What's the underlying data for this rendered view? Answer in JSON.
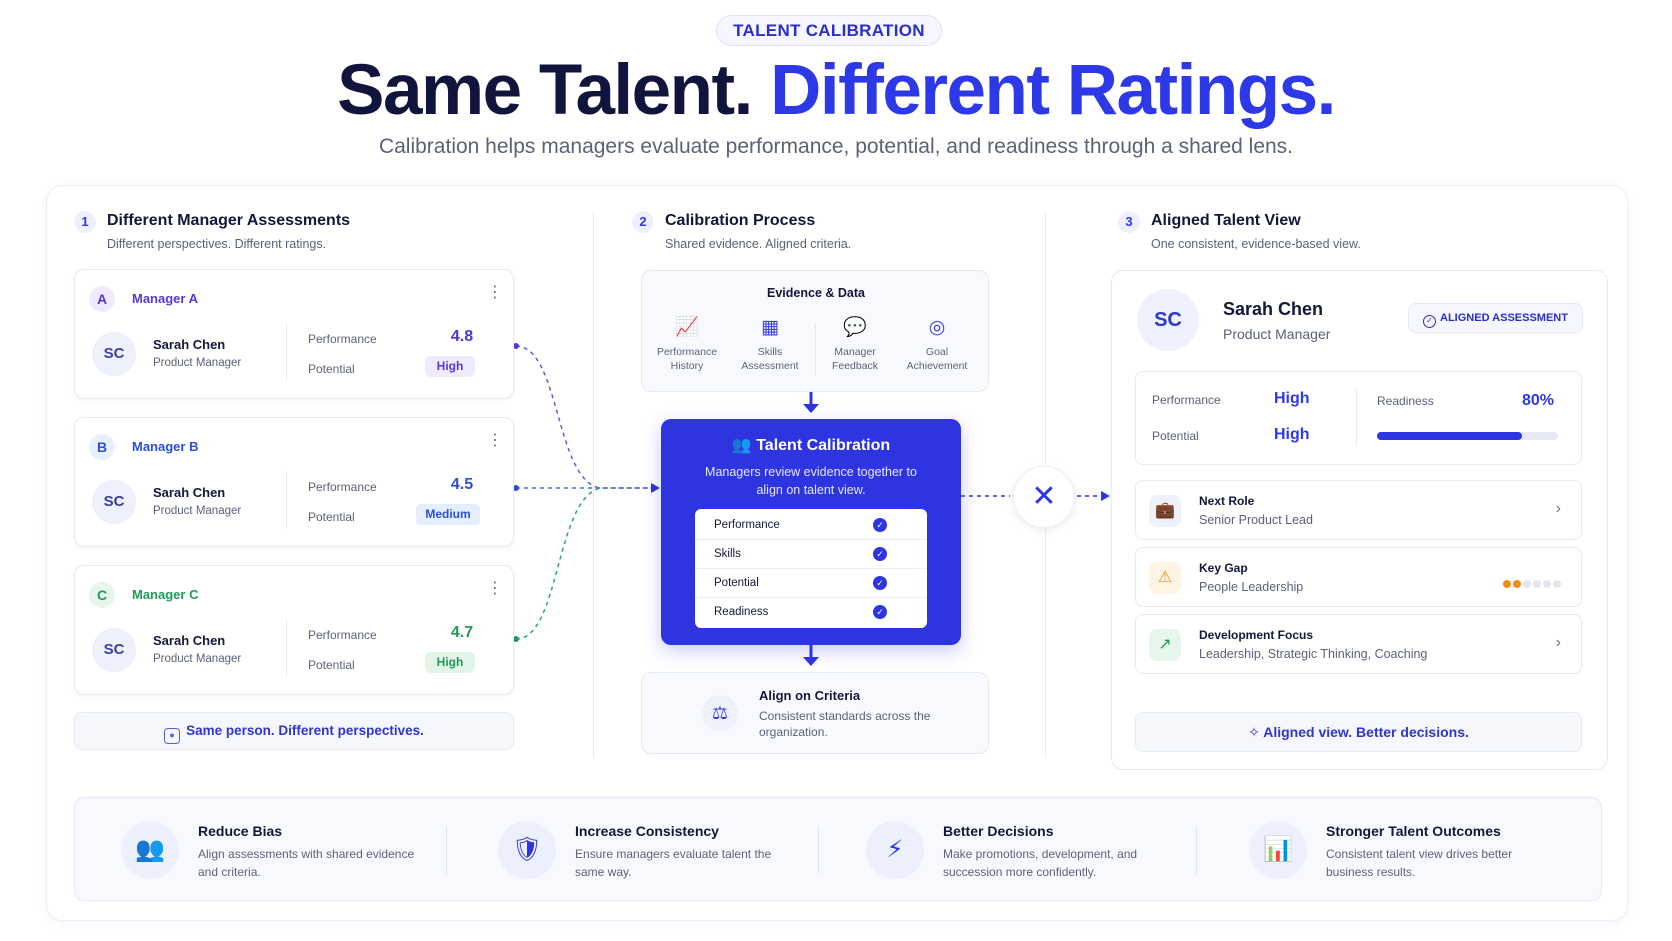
{
  "header": {
    "tag": "TALENT CALIBRATION",
    "headline_part1": "Same Talent.",
    "headline_part2": "Different Ratings.",
    "subhead": "Calibration helps managers evaluate performance, potential, and readiness through a shared lens."
  },
  "colors": {
    "accent": "#2d38e6",
    "manager_a": "#5a35d6",
    "manager_b": "#2d4fd6",
    "manager_c": "#1f9b55",
    "warning": "#f08c1a"
  },
  "section1": {
    "num": "1",
    "title": "Different Manager Assessments",
    "subtitle": "Different perspectives. Different ratings.",
    "managers": [
      {
        "badge": "A",
        "name": "Manager A",
        "avatar": "SC",
        "person": "Sarah Chen",
        "role": "Product Manager",
        "perf_label": "Performance",
        "perf_value": "4.8",
        "pot_label": "Potential",
        "pot_value": "High"
      },
      {
        "badge": "B",
        "name": "Manager B",
        "avatar": "SC",
        "person": "Sarah Chen",
        "role": "Product Manager",
        "perf_label": "Performance",
        "perf_value": "4.5",
        "pot_label": "Potential",
        "pot_value": "Medium"
      },
      {
        "badge": "C",
        "name": "Manager C",
        "avatar": "SC",
        "person": "Sarah Chen",
        "role": "Product Manager",
        "perf_label": "Performance",
        "perf_value": "4.7",
        "pot_label": "Potential",
        "pot_value": "High"
      }
    ],
    "footer": "Same person. Different perspectives."
  },
  "section2": {
    "num": "2",
    "title": "Calibration Process",
    "subtitle": "Shared evidence. Aligned criteria.",
    "evidence_title": "Evidence & Data",
    "evidence_items": [
      {
        "icon": "chart-icon",
        "line1": "Performance",
        "line2": "History"
      },
      {
        "icon": "grid-icon",
        "line1": "Skills",
        "line2": "Assessment"
      },
      {
        "icon": "chat-icon",
        "line1": "Manager",
        "line2": "Feedback"
      },
      {
        "icon": "target-icon",
        "line1": "Goal",
        "line2": "Achievement"
      }
    ],
    "calibration_title": "Talent Calibration",
    "calibration_desc": "Managers review evidence together to align on talent view.",
    "checklist": [
      "Performance",
      "Skills",
      "Potential",
      "Readiness"
    ],
    "align_title": "Align on Criteria",
    "align_desc": "Consistent standards across the organization."
  },
  "section3": {
    "num": "3",
    "title": "Aligned Talent View",
    "subtitle": "One consistent, evidence-based view.",
    "avatar": "SC",
    "name": "Sarah Chen",
    "role": "Product Manager",
    "badge": "ALIGNED ASSESSMENT",
    "perf_label": "Performance",
    "perf_value": "High",
    "pot_label": "Potential",
    "pot_value": "High",
    "readiness_label": "Readiness",
    "readiness_value": "80%",
    "readiness_fraction": 0.8,
    "rows": [
      {
        "icon": "briefcase-icon",
        "title": "Next Role",
        "desc": "Senior Product Lead"
      },
      {
        "icon": "warning-icon",
        "title": "Key Gap",
        "desc": "People Leadership",
        "level": 2,
        "max": 6
      },
      {
        "icon": "trend-up-icon",
        "title": "Development Focus",
        "desc": "Leadership, Strategic Thinking, Coaching"
      }
    ],
    "footer": "Aligned view. Better decisions."
  },
  "benefits": [
    {
      "icon": "users-icon",
      "title": "Reduce Bias",
      "desc": "Align assessments with shared evidence and criteria."
    },
    {
      "icon": "shield-icon",
      "title": "Increase Consistency",
      "desc": "Ensure managers evaluate talent the same way."
    },
    {
      "icon": "bolt-icon",
      "title": "Better Decisions",
      "desc": "Make promotions, development, and succession more confidently."
    },
    {
      "icon": "bar-chart-icon",
      "title": "Stronger Talent Outcomes",
      "desc": "Consistent talent view drives better business results."
    }
  ]
}
